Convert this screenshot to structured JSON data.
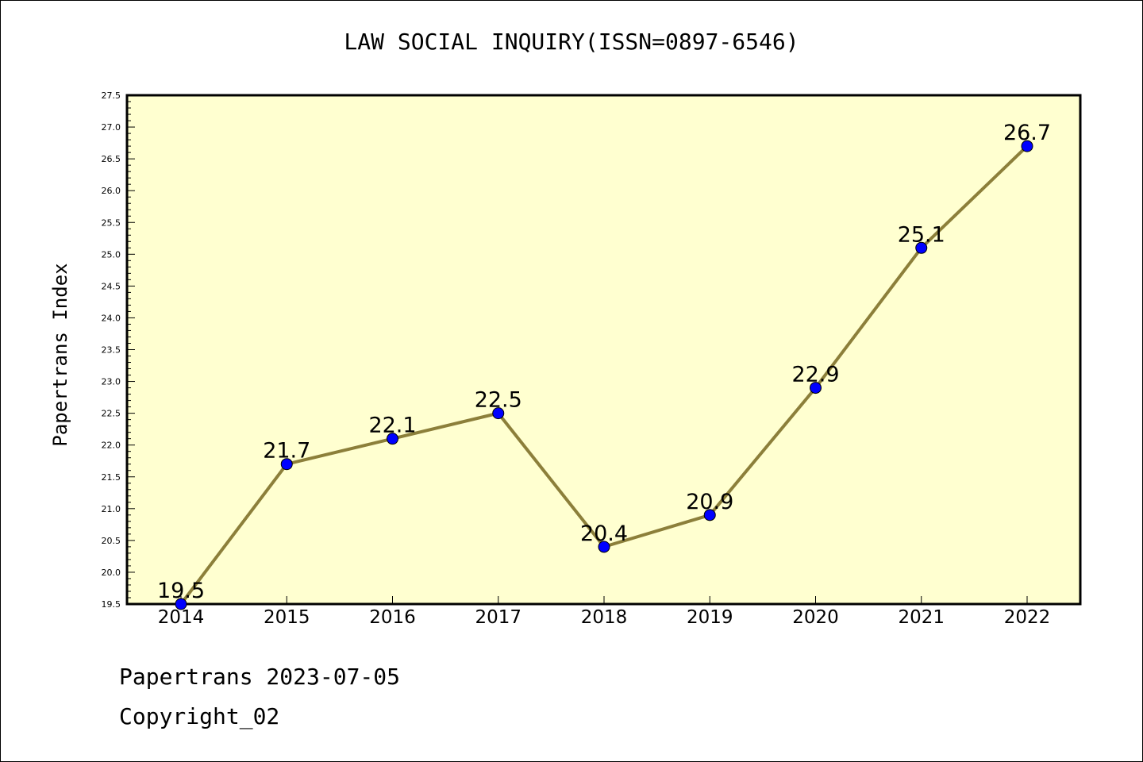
{
  "chart_data": {
    "type": "line",
    "title": "LAW SOCIAL INQUIRY(ISSN=0897-6546)",
    "xlabel": "",
    "ylabel": "Papertrans Index",
    "categories": [
      "2014",
      "2015",
      "2016",
      "2017",
      "2018",
      "2019",
      "2020",
      "2021",
      "2022"
    ],
    "series": [
      {
        "values": [
          19.5,
          21.7,
          22.1,
          22.5,
          20.4,
          20.9,
          22.9,
          25.1,
          26.7
        ],
        "data_labels": [
          "19.5",
          "21.7",
          "22.1",
          "22.5",
          "20.4",
          "20.9",
          "22.9",
          "25.1",
          "26.7"
        ]
      }
    ],
    "ylim": [
      19.5,
      27.5
    ],
    "yticks": [
      "19.5",
      "20.0",
      "20.5",
      "21.0",
      "21.5",
      "22.0",
      "22.5",
      "23.0",
      "23.5",
      "24.0",
      "24.5",
      "25.0",
      "25.5",
      "26.0",
      "26.5",
      "27.0",
      "27.5"
    ],
    "grid": false,
    "legend": "none",
    "colors": {
      "plot_background": "#FFFFD0",
      "line": "#8C7F3A",
      "marker": "#0000FF",
      "axis": "#000000"
    }
  },
  "footer": {
    "line1": "Papertrans 2023-07-05",
    "line2": "Copyright_02"
  }
}
